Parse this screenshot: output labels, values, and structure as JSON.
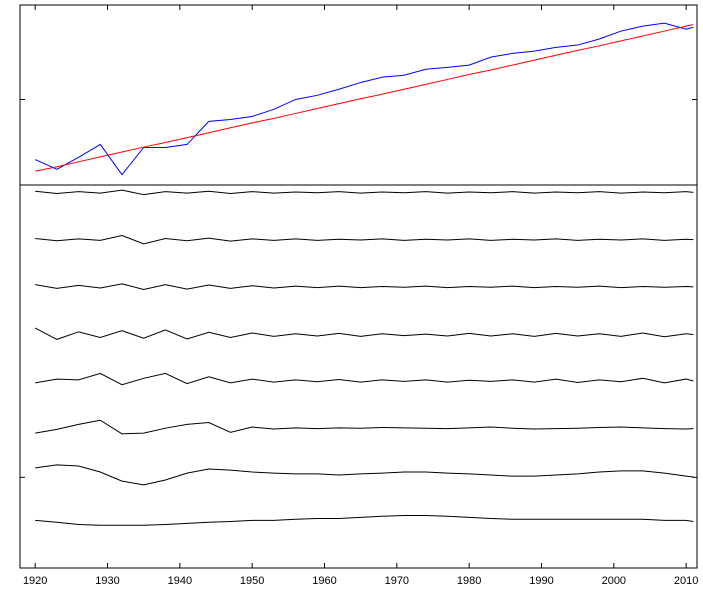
{
  "chart_data": {
    "type": "line",
    "x": [
      1920,
      1923,
      1926,
      1929,
      1932,
      1935,
      1938,
      1941,
      1944,
      1947,
      1950,
      1953,
      1956,
      1959,
      1962,
      1965,
      1968,
      1971,
      1974,
      1977,
      1980,
      1983,
      1986,
      1989,
      1992,
      1995,
      1998,
      2001,
      2004,
      2007,
      2010,
      2011
    ],
    "xlim": [
      1917.9,
      2011.5
    ],
    "xticks": [
      1920,
      1930,
      1940,
      1950,
      1960,
      1970,
      1980,
      1990,
      2000,
      2010
    ],
    "ylim": [
      -0.4,
      14.5
    ],
    "yticks": [
      2,
      12
    ],
    "series": [
      {
        "color": "#0000ff",
        "values": [
          10.41,
          10.15,
          10.47,
          10.81,
          10.01,
          10.73,
          10.73,
          10.81,
          11.42,
          11.47,
          11.55,
          11.74,
          12.0,
          12.11,
          12.27,
          12.45,
          12.59,
          12.64,
          12.8,
          12.85,
          12.91,
          13.12,
          13.22,
          13.28,
          13.38,
          13.44,
          13.6,
          13.81,
          13.94,
          14.02,
          13.86,
          13.91
        ]
      },
      {
        "color": "#ff0000",
        "values": [
          10.1,
          10.22,
          10.35,
          10.48,
          10.61,
          10.74,
          10.86,
          10.99,
          11.12,
          11.25,
          11.38,
          11.5,
          11.63,
          11.76,
          11.89,
          12.02,
          12.14,
          12.27,
          12.4,
          12.53,
          12.66,
          12.78,
          12.91,
          13.04,
          13.17,
          13.3,
          13.42,
          13.55,
          13.68,
          13.81,
          13.94,
          13.98
        ]
      },
      {
        "color": "#000000",
        "values": [
          9.57,
          9.51,
          9.56,
          9.52,
          9.6,
          9.48,
          9.56,
          9.52,
          9.57,
          9.51,
          9.56,
          9.52,
          9.55,
          9.53,
          9.56,
          9.52,
          9.55,
          9.53,
          9.56,
          9.52,
          9.55,
          9.53,
          9.56,
          9.52,
          9.55,
          9.53,
          9.56,
          9.52,
          9.55,
          9.53,
          9.56,
          9.54
        ]
      },
      {
        "color": "#000000",
        "values": [
          8.32,
          8.26,
          8.31,
          8.27,
          8.4,
          8.18,
          8.32,
          8.26,
          8.33,
          8.25,
          8.31,
          8.27,
          8.31,
          8.27,
          8.3,
          8.28,
          8.31,
          8.27,
          8.3,
          8.28,
          8.31,
          8.27,
          8.3,
          8.28,
          8.31,
          8.27,
          8.3,
          8.28,
          8.31,
          8.27,
          8.3,
          8.29
        ]
      },
      {
        "color": "#000000",
        "values": [
          7.1,
          7.0,
          7.08,
          7.01,
          7.12,
          6.97,
          7.1,
          6.98,
          7.09,
          7.0,
          7.07,
          7.01,
          7.06,
          7.02,
          7.06,
          7.02,
          7.05,
          7.03,
          7.06,
          7.02,
          7.05,
          7.03,
          7.06,
          7.02,
          7.05,
          7.03,
          7.06,
          7.02,
          7.05,
          7.03,
          7.05,
          7.04
        ]
      },
      {
        "color": "#000000",
        "values": [
          5.95,
          5.65,
          5.85,
          5.7,
          5.88,
          5.68,
          5.9,
          5.66,
          5.84,
          5.7,
          5.82,
          5.73,
          5.8,
          5.74,
          5.81,
          5.73,
          5.8,
          5.75,
          5.79,
          5.74,
          5.81,
          5.74,
          5.8,
          5.73,
          5.81,
          5.74,
          5.8,
          5.73,
          5.82,
          5.72,
          5.8,
          5.78
        ]
      },
      {
        "color": "#000000",
        "values": [
          4.5,
          4.6,
          4.58,
          4.75,
          4.45,
          4.62,
          4.75,
          4.48,
          4.66,
          4.5,
          4.6,
          4.52,
          4.58,
          4.53,
          4.59,
          4.52,
          4.58,
          4.54,
          4.58,
          4.52,
          4.57,
          4.54,
          4.58,
          4.52,
          4.6,
          4.51,
          4.58,
          4.53,
          4.62,
          4.5,
          4.6,
          4.55
        ]
      },
      {
        "color": "#000000",
        "values": [
          3.17,
          3.27,
          3.4,
          3.51,
          3.15,
          3.17,
          3.3,
          3.4,
          3.45,
          3.19,
          3.33,
          3.28,
          3.31,
          3.29,
          3.31,
          3.3,
          3.32,
          3.31,
          3.3,
          3.29,
          3.31,
          3.33,
          3.3,
          3.28,
          3.29,
          3.3,
          3.32,
          3.33,
          3.31,
          3.29,
          3.28,
          3.29
        ]
      },
      {
        "color": "#000000",
        "values": [
          2.25,
          2.33,
          2.3,
          2.14,
          1.9,
          1.8,
          1.93,
          2.11,
          2.22,
          2.19,
          2.14,
          2.11,
          2.09,
          2.09,
          2.06,
          2.09,
          2.11,
          2.14,
          2.14,
          2.11,
          2.09,
          2.06,
          2.03,
          2.03,
          2.06,
          2.09,
          2.14,
          2.17,
          2.17,
          2.11,
          2.03,
          2.01
        ]
      },
      {
        "color": "#000000",
        "values": [
          0.86,
          0.81,
          0.75,
          0.73,
          0.73,
          0.73,
          0.75,
          0.78,
          0.81,
          0.83,
          0.86,
          0.86,
          0.89,
          0.91,
          0.91,
          0.94,
          0.97,
          0.99,
          0.99,
          0.97,
          0.94,
          0.91,
          0.89,
          0.89,
          0.89,
          0.89,
          0.89,
          0.89,
          0.89,
          0.86,
          0.86,
          0.83
        ]
      }
    ]
  }
}
